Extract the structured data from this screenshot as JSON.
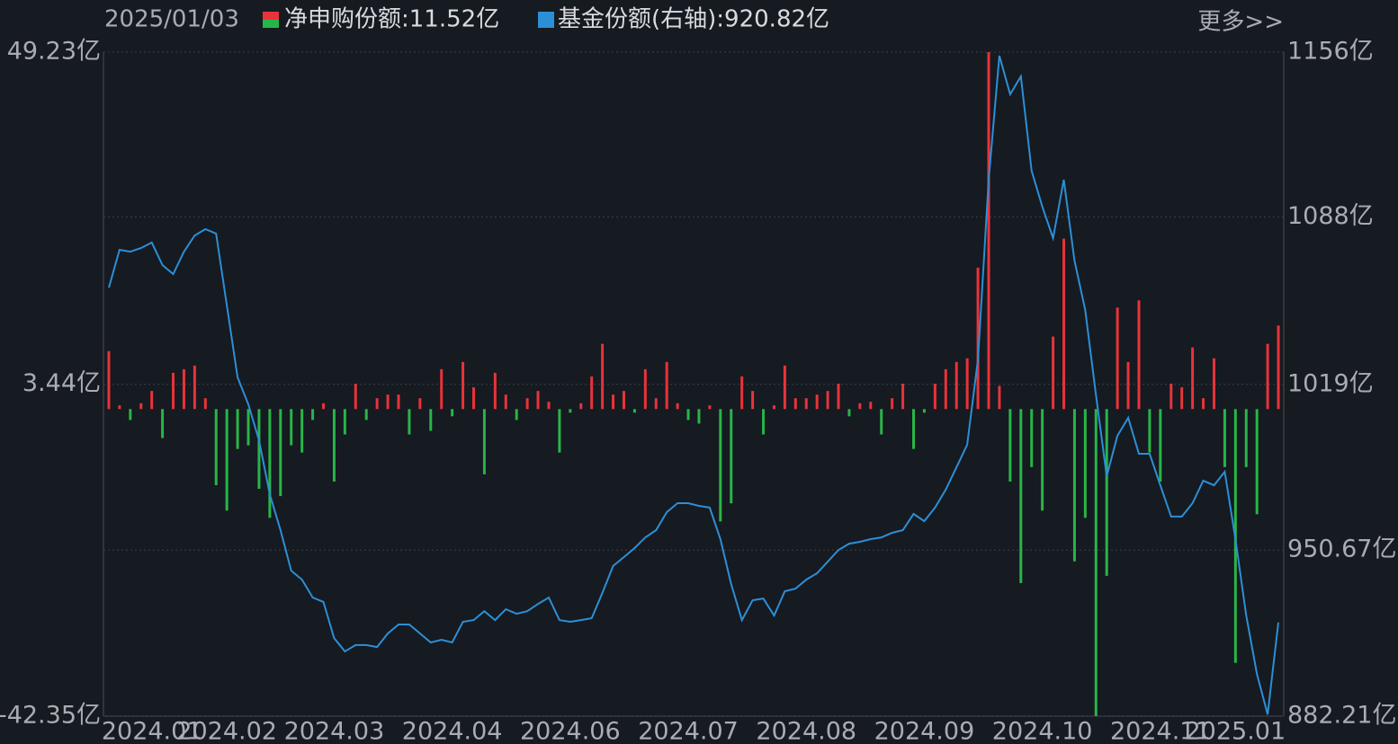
{
  "header": {
    "date": "2025/01/03",
    "more": "更多>>"
  },
  "chart_data": {
    "type": "bar",
    "categories": [
      null,
      null,
      null,
      null,
      "2024.01",
      null,
      null,
      null,
      null,
      null,
      null,
      "2024.02",
      null,
      null,
      null,
      null,
      null,
      null,
      null,
      null,
      null,
      "2024.03",
      null,
      null,
      null,
      null,
      null,
      null,
      null,
      null,
      null,
      null,
      "2024.04",
      null,
      null,
      null,
      null,
      null,
      null,
      null,
      null,
      null,
      null,
      "2024.06",
      null,
      null,
      null,
      null,
      null,
      null,
      null,
      null,
      null,
      null,
      "2024.07",
      null,
      null,
      null,
      null,
      null,
      null,
      null,
      null,
      null,
      null,
      "2024.08",
      null,
      null,
      null,
      null,
      null,
      null,
      null,
      null,
      null,
      null,
      "2024.09",
      null,
      null,
      null,
      null,
      null,
      null,
      null,
      null,
      null,
      null,
      "2024.10",
      null,
      null,
      null,
      null,
      null,
      null,
      null,
      null,
      null,
      null,
      "2024.11",
      null,
      null,
      null,
      null,
      null,
      null,
      "2025.01",
      null,
      null,
      null,
      null
    ],
    "series": [
      {
        "name": "净申购份额:11.52亿",
        "type": "bar",
        "axis": "y",
        "color": "#e8333a",
        "negative_color": "#28b547",
        "values": [
          8,
          0.5,
          -1.5,
          0.8,
          2.5,
          -4,
          5,
          5.5,
          6,
          1.5,
          -10.5,
          -14,
          -5.5,
          -5,
          -11,
          -15,
          -12,
          -5,
          -6,
          -1.5,
          0.8,
          -10,
          -3.5,
          3.5,
          -1.5,
          1.5,
          2,
          2,
          -3.5,
          1.5,
          -3,
          5.5,
          -1,
          6.5,
          3,
          -9,
          5,
          2,
          -1.5,
          1.5,
          2.5,
          1,
          -6,
          -0.5,
          0.8,
          4.5,
          9,
          2,
          2.5,
          -0.5,
          5.5,
          1.5,
          6.5,
          0.8,
          -1.5,
          -2,
          0.5,
          -15.5,
          -13,
          4.5,
          2.5,
          -3.5,
          0.5,
          6,
          1.5,
          1.5,
          2,
          2.5,
          3.5,
          -1,
          0.8,
          1,
          -3.5,
          1.5,
          3.5,
          -5.5,
          -0.5,
          3.5,
          5.5,
          6.5,
          7,
          19.5,
          49.23,
          3.2,
          -10,
          -24,
          -8,
          -14,
          10,
          23.5,
          -21,
          -15,
          -42.35,
          -23,
          14,
          6.5,
          15,
          -6,
          -10,
          3.5,
          3,
          8.5,
          1.5,
          7,
          -8,
          -35,
          -8,
          -14.5,
          9,
          11.52
        ]
      },
      {
        "name": "基金份额(右轴):920.82亿",
        "type": "line",
        "axis": "y2",
        "color": "#2c8fd6",
        "values": [
          1058.9,
          1074.5,
          1073.7,
          1075.2,
          1077.5,
          1068.2,
          1064.5,
          1073.7,
          1080.4,
          1083,
          1081.2,
          1051.5,
          1021.9,
          1010.8,
          996,
          973.7,
          958.9,
          942.2,
          938.5,
          931.1,
          929.3,
          914.4,
          908.9,
          911.5,
          911.5,
          910.7,
          916.3,
          920,
          920,
          916.3,
          912.6,
          913.7,
          912.6,
          921.1,
          921.8,
          925.5,
          921.8,
          926.3,
          924.4,
          925.5,
          928.5,
          931.1,
          921.8,
          921.1,
          921.8,
          922.6,
          933,
          944.1,
          947.8,
          951.5,
          955.9,
          958.9,
          966.3,
          970,
          970,
          968.9,
          968.2,
          955.2,
          936.7,
          921.8,
          930,
          930.7,
          923.7,
          933.7,
          934.8,
          938.5,
          941.1,
          945.9,
          950.7,
          953.3,
          954.1,
          955.2,
          955.9,
          957.8,
          958.9,
          965.6,
          962.6,
          968.2,
          975.6,
          984.8,
          994.1,
          1029.3,
          1103.4,
          1154.5,
          1138.6,
          1146,
          1107.1,
          1092.3,
          1079.3,
          1103.4,
          1070,
          1049.7,
          1014.5,
          981.1,
          997.8,
          1005.2,
          990.4,
          990.4,
          977.4,
          964.5,
          964.5,
          970,
          979.3,
          977.4,
          983,
          955.2,
          923.7,
          899.6,
          882.9,
          920.82
        ]
      }
    ],
    "ylim": [
      -42.35,
      49.23
    ],
    "yticks": [
      {
        "value": 49.23,
        "label": "49.23亿"
      },
      {
        "value": 3.44,
        "label": "3.44亿"
      },
      {
        "value": -42.35,
        "label": "-42.35亿"
      }
    ],
    "y2lim": [
      882.21,
      1156
    ],
    "y2ticks": [
      {
        "value": 1156,
        "label": "1156亿"
      },
      {
        "value": 1088,
        "label": "1088亿"
      },
      {
        "value": 1019,
        "label": "1019亿"
      },
      {
        "value": 950.67,
        "label": "950.67亿"
      },
      {
        "value": 882.21,
        "label": "882.21亿"
      }
    ],
    "grid": true
  }
}
